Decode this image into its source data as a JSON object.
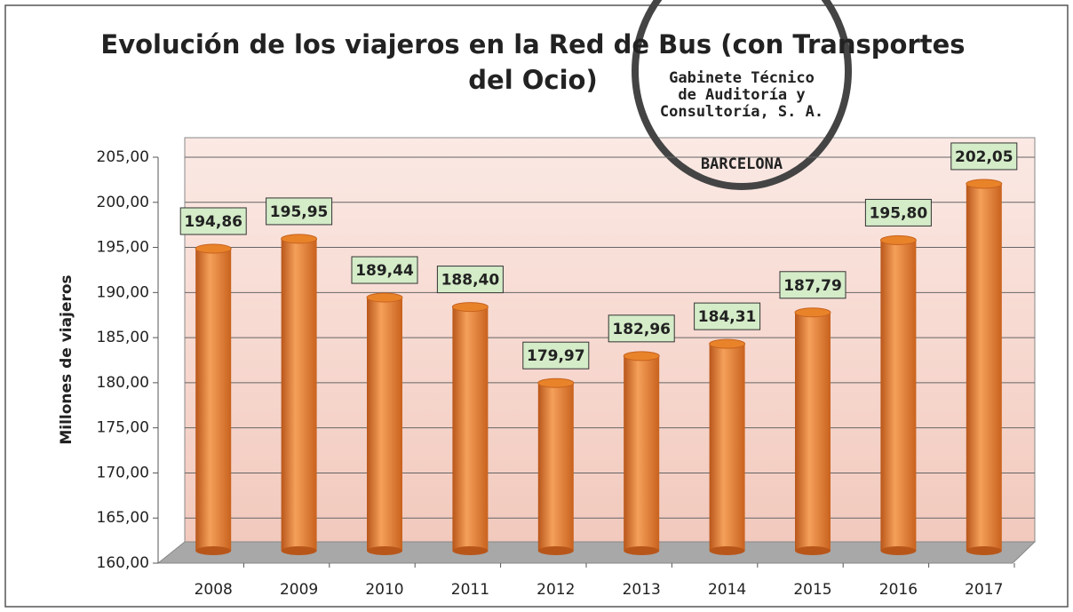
{
  "chart_data": {
    "type": "bar",
    "title": "Evolución de los viajeros en la Red de Bus (con Transportes del Ocio)",
    "y_label": "Millones de viajeros",
    "categories": [
      "2008",
      "2009",
      "2010",
      "2011",
      "2012",
      "2013",
      "2014",
      "2015",
      "2016",
      "2017"
    ],
    "values": [
      194.86,
      195.95,
      189.44,
      188.4,
      179.97,
      182.96,
      184.31,
      187.79,
      195.8,
      202.05
    ],
    "value_labels": [
      "194,86",
      "195,95",
      "189,44",
      "188,40",
      "179,97",
      "182,96",
      "184,31",
      "187,79",
      "195,80",
      "202,05"
    ],
    "color": "#e8832a",
    "ylim": [
      160,
      205
    ],
    "yticks": [
      {
        "value": 160,
        "label": "160,00"
      },
      {
        "value": 165,
        "label": "165,00"
      },
      {
        "value": 170,
        "label": "170,00"
      },
      {
        "value": 175,
        "label": "175,00"
      },
      {
        "value": 180,
        "label": "180,00"
      },
      {
        "value": 185,
        "label": "185,00"
      },
      {
        "value": 190,
        "label": "190,00"
      },
      {
        "value": 195,
        "label": "195,00"
      },
      {
        "value": 200,
        "label": "200,00"
      },
      {
        "value": 205,
        "label": "205,00"
      }
    ],
    "grid": true,
    "stamp": [
      "Gabinete Técnico",
      "de Auditoría y",
      "Consultoría, S. A.",
      "BARCELONA"
    ]
  }
}
